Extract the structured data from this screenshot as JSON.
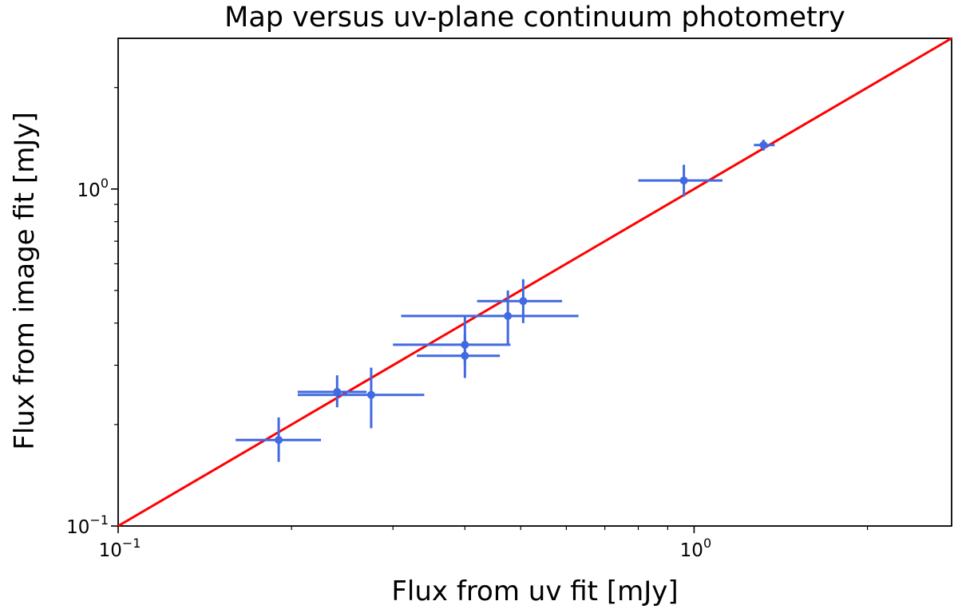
{
  "chart_data": {
    "type": "scatter",
    "title": "Map versus uv-plane continuum photometry",
    "xlabel": "Flux from uv fit [mJy]",
    "ylabel": "Flux from image fit [mJy]",
    "xscale": "log",
    "yscale": "log",
    "xlim": [
      0.1,
      2.8
    ],
    "ylim": [
      0.1,
      2.8
    ],
    "grid": false,
    "x_tick_labels": [
      {
        "value": 0.1,
        "base": "10",
        "exp": "−1"
      },
      {
        "value": 1.0,
        "base": "10",
        "exp": "0"
      }
    ],
    "y_tick_labels": [
      {
        "value": 0.1,
        "base": "10",
        "exp": "−1"
      },
      {
        "value": 1.0,
        "base": "10",
        "exp": "0"
      }
    ],
    "point_color": "#4169e1",
    "line_color": "#ff0000",
    "reference_line": {
      "label": "",
      "x": [
        0.1,
        2.8
      ],
      "y": [
        0.1,
        2.8
      ]
    },
    "points": [
      {
        "x": 0.19,
        "y": 0.18,
        "x_err": [
          0.16,
          0.225
        ],
        "y_err": [
          0.155,
          0.21
        ]
      },
      {
        "x": 0.24,
        "y": 0.25,
        "x_err": [
          0.205,
          0.27
        ],
        "y_err": [
          0.225,
          0.28
        ]
      },
      {
        "x": 0.275,
        "y": 0.245,
        "x_err": [
          0.205,
          0.34
        ],
        "y_err": [
          0.195,
          0.295
        ]
      },
      {
        "x": 0.4,
        "y": 0.345,
        "x_err": [
          0.3,
          0.48
        ],
        "y_err": [
          0.3,
          0.42
        ]
      },
      {
        "x": 0.4,
        "y": 0.32,
        "x_err": [
          0.33,
          0.46
        ],
        "y_err": [
          0.275,
          0.37
        ]
      },
      {
        "x": 0.475,
        "y": 0.42,
        "x_err": [
          0.31,
          0.63
        ],
        "y_err": [
          0.345,
          0.5
        ]
      },
      {
        "x": 0.505,
        "y": 0.465,
        "x_err": [
          0.42,
          0.59
        ],
        "y_err": [
          0.4,
          0.54
        ]
      },
      {
        "x": 0.96,
        "y": 1.06,
        "x_err": [
          0.8,
          1.12
        ],
        "y_err": [
          0.95,
          1.18
        ]
      },
      {
        "x": 1.32,
        "y": 1.35,
        "x_err": [
          1.27,
          1.38
        ],
        "y_err": [
          1.3,
          1.4
        ]
      }
    ]
  }
}
